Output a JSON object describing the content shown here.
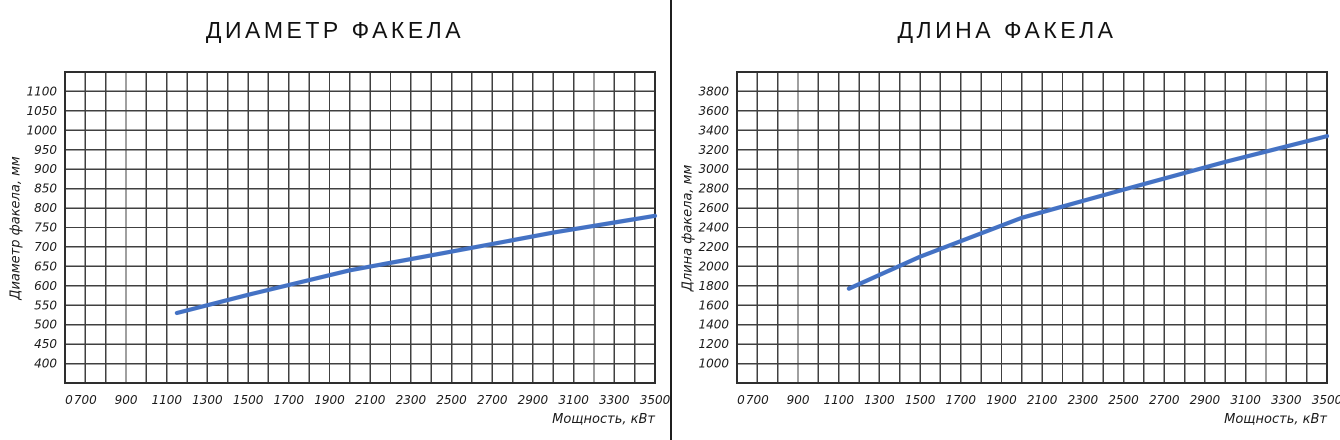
{
  "page": {
    "background": "#ffffff",
    "divider_color": "#1f1f1f",
    "grid_color": "#404040",
    "accent_line_color": "#4472c4"
  },
  "chart_data": [
    {
      "type": "line",
      "title": "ДИАМЕТР ФАКЕЛА",
      "xlabel": "Мощность, кВт",
      "ylabel": "Диаметр факела, мм",
      "x_ticks": [
        0,
        700,
        900,
        1100,
        1300,
        1500,
        1700,
        1900,
        2100,
        2300,
        2500,
        2700,
        2900,
        3100,
        3300,
        3500
      ],
      "y_ticks": [
        400,
        450,
        500,
        550,
        600,
        650,
        700,
        750,
        800,
        850,
        900,
        950,
        1000,
        1050,
        1100
      ],
      "x_grid_step_kw": 100,
      "x_axis_compressed_before": 700,
      "grid": true,
      "legend": "none",
      "line_color": "#4472c4",
      "series": [
        {
          "name": "Диаметр факела",
          "x": [
            1150,
            1500,
            2000,
            2500,
            3000,
            3500
          ],
          "y": [
            530,
            577,
            640,
            688,
            737,
            780
          ]
        }
      ]
    },
    {
      "type": "line",
      "title": "ДЛИНА ФАКЕЛА",
      "xlabel": "Мощность, кВт",
      "ylabel": "Длина факела, мм",
      "x_ticks": [
        0,
        700,
        900,
        1100,
        1300,
        1500,
        1700,
        1900,
        2100,
        2300,
        2500,
        2700,
        2900,
        3100,
        3300,
        3500
      ],
      "y_ticks": [
        1000,
        1200,
        1400,
        1600,
        1800,
        2000,
        2200,
        2400,
        2600,
        2800,
        3000,
        3200,
        3400,
        3600,
        3800
      ],
      "x_grid_step_kw": 100,
      "x_axis_compressed_before": 700,
      "grid": true,
      "legend": "none",
      "line_color": "#4472c4",
      "series": [
        {
          "name": "Длина факела",
          "x": [
            1150,
            1500,
            2000,
            2500,
            3000,
            3500
          ],
          "y": [
            1770,
            2100,
            2500,
            2790,
            3075,
            3340
          ]
        }
      ]
    }
  ]
}
